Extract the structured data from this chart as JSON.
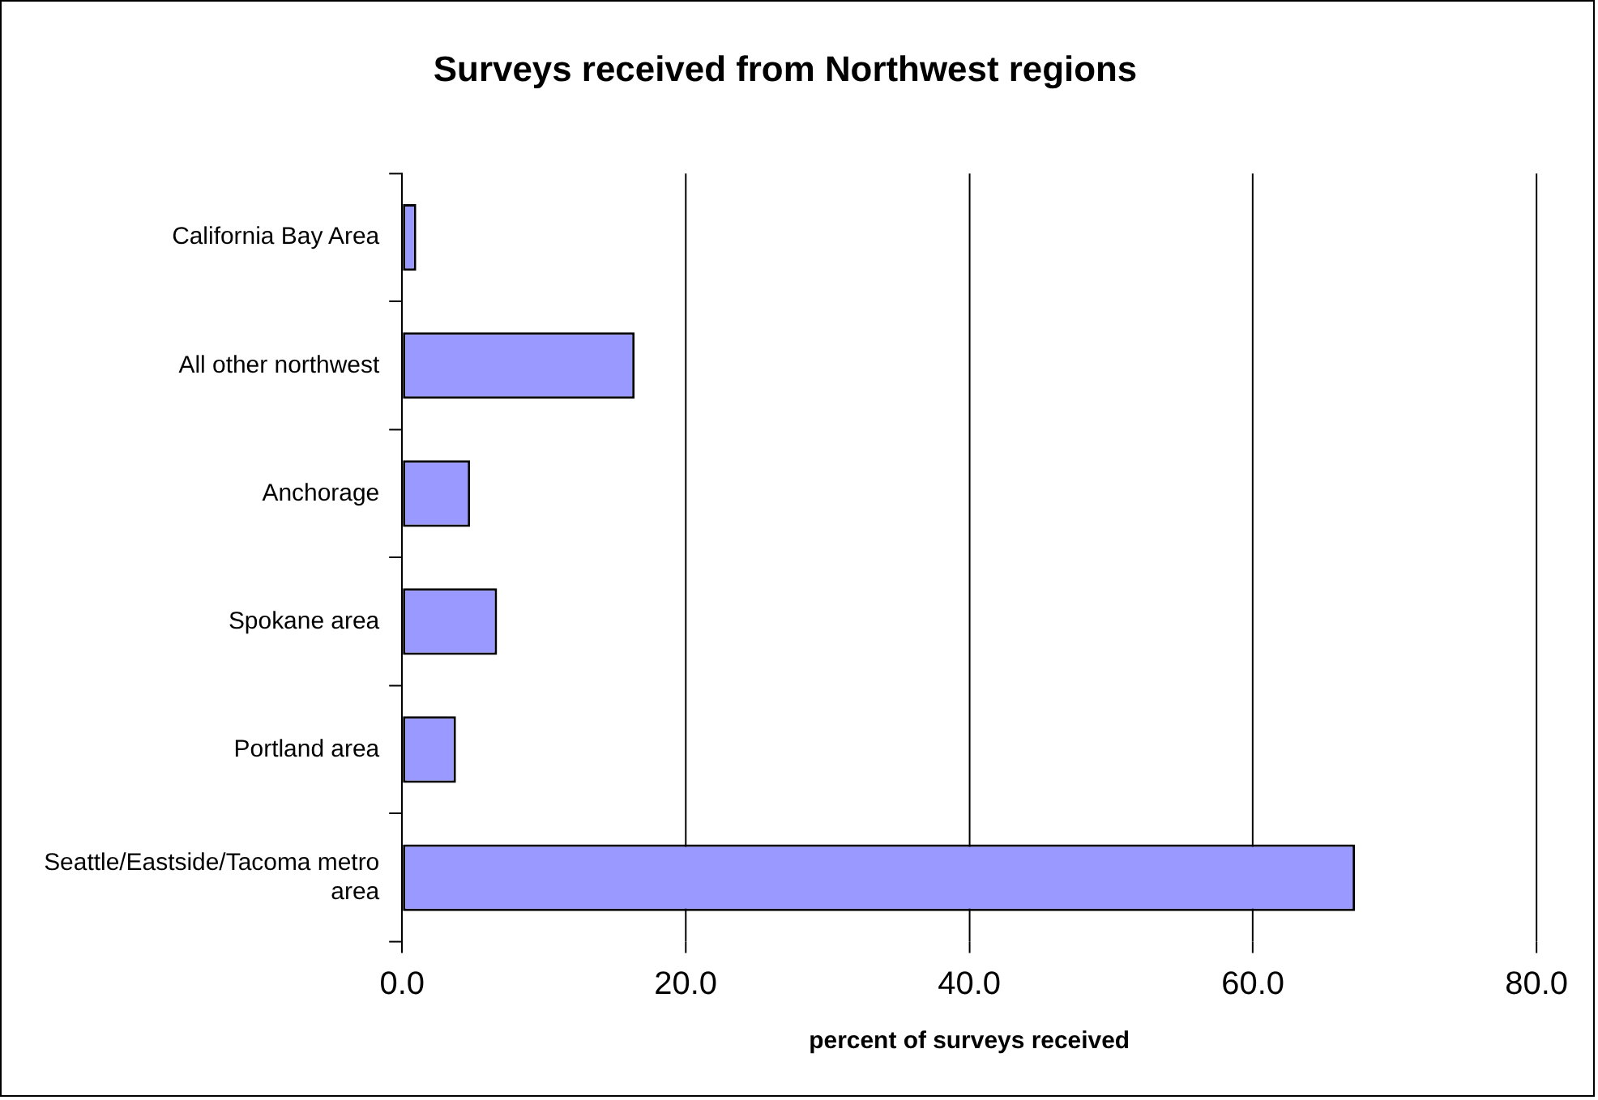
{
  "chart_data": {
    "type": "bar",
    "orientation": "horizontal",
    "title": "Surveys received from Northwest regions",
    "xlabel": "percent of surveys received",
    "categories": [
      "California Bay Area",
      "All other northwest",
      "Anchorage",
      "Spokane area",
      "Portland area",
      "Seattle/Eastside/Tacoma metro area"
    ],
    "values": [
      1.0,
      16.4,
      4.8,
      6.7,
      3.8,
      67.2
    ],
    "color": "#9999ff",
    "xlim": [
      0,
      80
    ],
    "xticks": [
      {
        "value": 0,
        "label": "0.0"
      },
      {
        "value": 20,
        "label": "20.0"
      },
      {
        "value": 40,
        "label": "40.0"
      },
      {
        "value": 60,
        "label": "60.0"
      },
      {
        "value": 80,
        "label": "80.0"
      }
    ],
    "grid": "x",
    "legend": false
  }
}
